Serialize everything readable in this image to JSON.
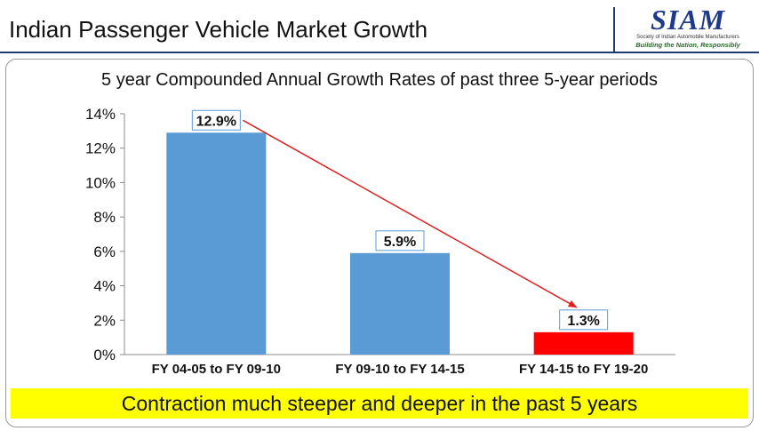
{
  "header": {
    "title": "Indian Passenger Vehicle Market Growth",
    "logo": {
      "name": "SIAM",
      "subtitle": "Society of Indian Automobile Manufacturers",
      "tagline": "Building the Nation, Responsibly"
    }
  },
  "colors": {
    "bar_default": "#5b9bd5",
    "bar_highlight": "#ff0000",
    "arrow": "#e02020",
    "callout_bg": "#ffff00",
    "brand": "#1f3a6e"
  },
  "chart_data": {
    "type": "bar",
    "title": "5 year Compounded Annual Growth Rates of past three 5-year periods",
    "categories": [
      "FY 04-05 to FY 09-10",
      "FY 09-10 to FY 14-15",
      "FY 14-15 to FY 19-20"
    ],
    "values": [
      12.9,
      5.9,
      1.3
    ],
    "data_labels": [
      "12.9%",
      "5.9%",
      "1.3%"
    ],
    "bar_colors": [
      "#5b9bd5",
      "#5b9bd5",
      "#ff0000"
    ],
    "ylim": [
      0,
      14
    ],
    "yticks": [
      0,
      2,
      4,
      6,
      8,
      10,
      12,
      14
    ],
    "ytick_labels": [
      "0%",
      "2%",
      "4%",
      "6%",
      "8%",
      "10%",
      "12%",
      "14%"
    ],
    "grid": false,
    "legend": "none",
    "annotation": "arrow from first bar to third bar"
  },
  "callout": {
    "text": "Contraction much steeper and deeper in the past 5 years"
  }
}
